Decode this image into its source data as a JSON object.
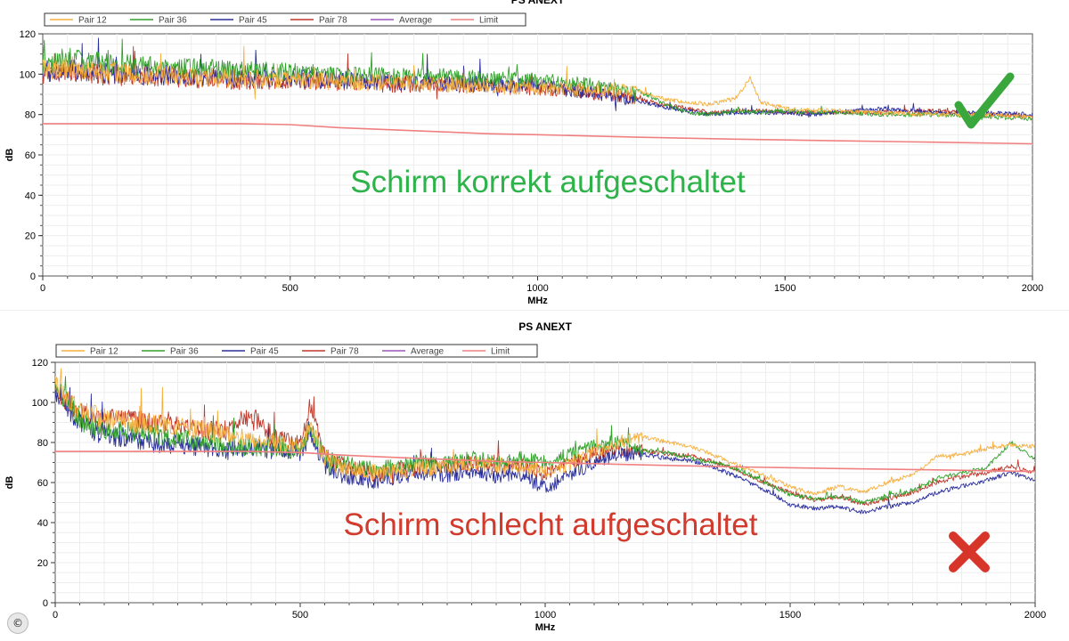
{
  "chart_data": [
    {
      "type": "line",
      "title": "PS ANEXT",
      "xlabel": "MHz",
      "ylabel": "dB",
      "xlim": [
        0,
        2000
      ],
      "ylim": [
        0,
        120
      ],
      "x_ticks": [
        0,
        500,
        1000,
        1500,
        2000
      ],
      "y_ticks": [
        0,
        20,
        40,
        60,
        80,
        100,
        120
      ],
      "grid": true,
      "legend_position": "top-left",
      "annotation": "Schirm korrekt aufgeschaltet",
      "annotation_color": "#2db34a",
      "status_icon": "checkmark-icon",
      "series": [
        {
          "name": "Pair 12",
          "color": "#f5b041",
          "x": [
            0,
            50,
            100,
            200,
            300,
            400,
            500,
            600,
            700,
            800,
            900,
            1000,
            1100,
            1200,
            1250,
            1300,
            1350,
            1400,
            1430,
            1450,
            1500,
            1550,
            1600,
            1700,
            1800,
            1900,
            2000
          ],
          "y": [
            102,
            104,
            101,
            100,
            99,
            98,
            97,
            96,
            96,
            95,
            94,
            93,
            92,
            92,
            88,
            86,
            85,
            88,
            98,
            86,
            83,
            82,
            82,
            81,
            80,
            80,
            79
          ]
        },
        {
          "name": "Pair 36",
          "color": "#33a02c",
          "x": [
            0,
            50,
            100,
            200,
            300,
            400,
            500,
            600,
            700,
            800,
            900,
            1000,
            1100,
            1200,
            1250,
            1300,
            1350,
            1400,
            1450,
            1500,
            1550,
            1600,
            1700,
            1800,
            1900,
            2000
          ],
          "y": [
            104,
            108,
            106,
            104,
            103,
            102,
            101,
            100,
            99,
            99,
            98,
            97,
            95,
            92,
            86,
            81,
            80,
            82,
            81,
            82,
            81,
            81,
            80,
            80,
            79,
            78
          ]
        },
        {
          "name": "Pair 45",
          "color": "#2b2f9c",
          "x": [
            0,
            50,
            100,
            200,
            300,
            400,
            500,
            600,
            700,
            800,
            900,
            1000,
            1100,
            1200,
            1250,
            1300,
            1350,
            1400,
            1450,
            1500,
            1550,
            1600,
            1700,
            1800,
            1900,
            2000
          ],
          "y": [
            101,
            103,
            101,
            100,
            99,
            98,
            98,
            97,
            96,
            96,
            95,
            94,
            91,
            87,
            84,
            82,
            80,
            81,
            81,
            81,
            80,
            81,
            83,
            81,
            81,
            80
          ]
        },
        {
          "name": "Pair 78",
          "color": "#c0392b",
          "x": [
            0,
            50,
            100,
            200,
            300,
            400,
            500,
            600,
            700,
            800,
            900,
            1000,
            1100,
            1200,
            1250,
            1300,
            1350,
            1400,
            1450,
            1500,
            1550,
            1600,
            1700,
            1800,
            1900,
            2000
          ],
          "y": [
            100,
            102,
            100,
            99,
            98,
            97,
            97,
            96,
            95,
            95,
            94,
            93,
            91,
            88,
            85,
            83,
            81,
            82,
            82,
            81,
            81,
            81,
            81,
            82,
            80,
            79
          ]
        },
        {
          "name": "Average",
          "color": "#9b59b6",
          "x": [],
          "y": []
        },
        {
          "name": "Limit",
          "color": "#f08080",
          "x": [
            0,
            100,
            200,
            300,
            400,
            500,
            600,
            700,
            800,
            900,
            1000,
            1200,
            1400,
            1600,
            1800,
            2000
          ],
          "y": [
            75.5,
            75.5,
            75.5,
            75.5,
            75.5,
            75,
            73.5,
            72.5,
            71.5,
            70.5,
            70,
            68.8,
            67.8,
            67,
            66.3,
            65.5
          ]
        }
      ]
    },
    {
      "type": "line",
      "title": "PS ANEXT",
      "xlabel": "MHz",
      "ylabel": "dB",
      "xlim": [
        0,
        2000
      ],
      "ylim": [
        0,
        120
      ],
      "x_ticks": [
        0,
        500,
        1000,
        1500,
        2000
      ],
      "y_ticks": [
        0,
        20,
        40,
        60,
        80,
        100,
        120
      ],
      "grid": true,
      "legend_position": "top-left",
      "annotation": "Schirm schlecht aufgeschaltet",
      "annotation_color": "#d13a2c",
      "status_icon": "cross-icon",
      "series": [
        {
          "name": "Pair 12",
          "color": "#f5b041",
          "x": [
            0,
            30,
            60,
            100,
            150,
            200,
            250,
            300,
            350,
            400,
            450,
            500,
            520,
            550,
            600,
            650,
            700,
            750,
            800,
            850,
            900,
            950,
            1000,
            1050,
            1100,
            1150,
            1200,
            1250,
            1300,
            1350,
            1400,
            1450,
            1500,
            1550,
            1600,
            1650,
            1700,
            1750,
            1800,
            1850,
            1900,
            1950,
            2000
          ],
          "y": [
            110,
            100,
            95,
            92,
            90,
            89,
            88,
            86,
            84,
            82,
            80,
            77,
            88,
            72,
            66,
            65,
            66,
            67,
            68,
            69,
            68,
            68,
            66,
            69,
            75,
            80,
            83,
            80,
            78,
            73,
            68,
            63,
            58,
            54,
            58,
            55,
            60,
            64,
            73,
            74,
            77,
            79,
            78
          ]
        },
        {
          "name": "Pair 36",
          "color": "#33a02c",
          "x": [
            0,
            30,
            60,
            100,
            150,
            200,
            250,
            300,
            350,
            400,
            450,
            500,
            520,
            550,
            600,
            650,
            700,
            750,
            800,
            850,
            900,
            950,
            1000,
            1050,
            1100,
            1150,
            1200,
            1250,
            1300,
            1350,
            1400,
            1450,
            1500,
            1550,
            1600,
            1650,
            1700,
            1750,
            1800,
            1850,
            1900,
            1950,
            2000
          ],
          "y": [
            108,
            98,
            90,
            86,
            85,
            84,
            82,
            80,
            78,
            78,
            77,
            76,
            88,
            72,
            69,
            66,
            68,
            70,
            70,
            72,
            71,
            72,
            70,
            74,
            78,
            80,
            76,
            75,
            72,
            70,
            66,
            60,
            54,
            52,
            53,
            50,
            53,
            56,
            62,
            65,
            67,
            80,
            72
          ]
        },
        {
          "name": "Pair 45",
          "color": "#2b2f9c",
          "x": [
            0,
            30,
            60,
            100,
            150,
            200,
            250,
            300,
            350,
            400,
            450,
            500,
            520,
            550,
            600,
            650,
            700,
            750,
            800,
            850,
            900,
            950,
            1000,
            1050,
            1100,
            1150,
            1200,
            1250,
            1300,
            1350,
            1400,
            1450,
            1500,
            1550,
            1600,
            1650,
            1700,
            1750,
            1800,
            1850,
            1900,
            1950,
            2000
          ],
          "y": [
            106,
            96,
            88,
            84,
            82,
            80,
            79,
            78,
            76,
            77,
            76,
            75,
            84,
            68,
            62,
            61,
            63,
            65,
            64,
            66,
            63,
            64,
            57,
            64,
            70,
            74,
            74,
            72,
            71,
            67,
            62,
            56,
            49,
            47,
            48,
            45,
            48,
            50,
            55,
            58,
            61,
            65,
            61
          ]
        },
        {
          "name": "Pair 78",
          "color": "#c0392b",
          "x": [
            0,
            30,
            60,
            100,
            150,
            200,
            250,
            300,
            350,
            400,
            450,
            500,
            520,
            550,
            600,
            650,
            700,
            750,
            800,
            850,
            900,
            950,
            1000,
            1050,
            1100,
            1150,
            1200,
            1250,
            1300,
            1350,
            1400,
            1450,
            1500,
            1550,
            1600,
            1650,
            1700,
            1750,
            1800,
            1850,
            1900,
            1950,
            2000
          ],
          "y": [
            108,
            99,
            93,
            91,
            92,
            90,
            88,
            86,
            86,
            94,
            82,
            79,
            98,
            73,
            67,
            64,
            66,
            68,
            68,
            70,
            68,
            69,
            64,
            70,
            74,
            76,
            76,
            74,
            73,
            70,
            65,
            60,
            55,
            51,
            53,
            49,
            52,
            55,
            60,
            63,
            65,
            68,
            65
          ]
        },
        {
          "name": "Average",
          "color": "#9b59b6",
          "x": [],
          "y": []
        },
        {
          "name": "Limit",
          "color": "#f08080",
          "x": [
            0,
            100,
            200,
            300,
            400,
            500,
            600,
            700,
            800,
            900,
            1000,
            1200,
            1400,
            1600,
            1800,
            2000
          ],
          "y": [
            75.5,
            75.5,
            75.5,
            75.5,
            75.5,
            75,
            73.5,
            72.5,
            71.5,
            70.5,
            70,
            68.8,
            67.8,
            67,
            66.3,
            65.5
          ]
        }
      ]
    }
  ],
  "copyright_symbol": "©"
}
